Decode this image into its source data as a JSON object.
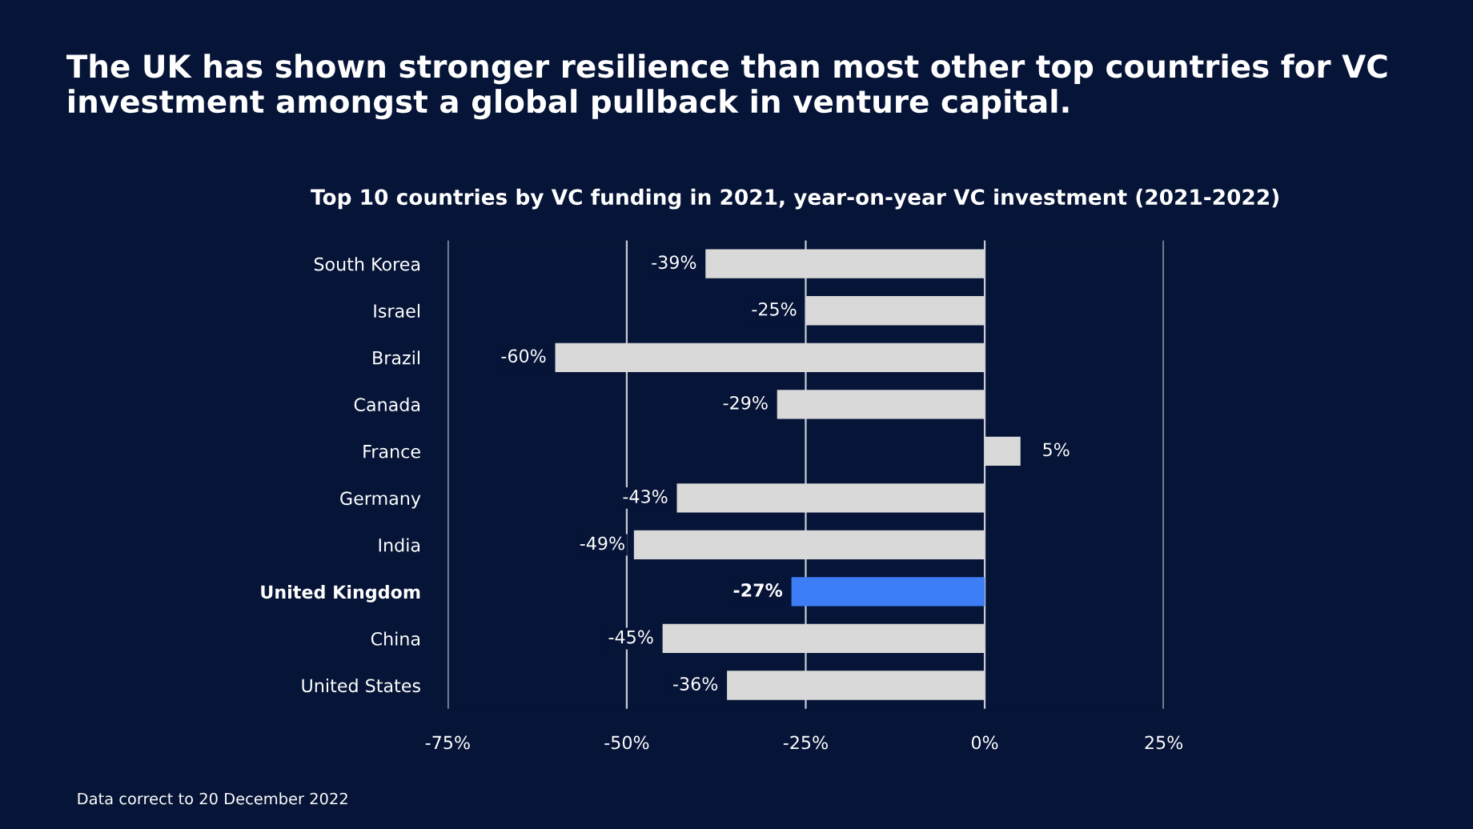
{
  "chart_data": {
    "type": "bar",
    "orientation": "horizontal",
    "title": "The UK has shown stronger resilience than most other top countries for VC investment amongst a global pullback in venture capital.",
    "subtitle": "Top 10 countries by VC funding in 2021, year-on-year VC investment (2021-2022)",
    "categories": [
      "South Korea",
      "Israel",
      "Brazil",
      "Canada",
      "France",
      "Germany",
      "India",
      "United Kingdom",
      "China",
      "United States"
    ],
    "values": [
      -39,
      -25,
      -60,
      -29,
      5,
      -43,
      -49,
      -27,
      -45,
      -36
    ],
    "colors": [
      "#d9d9d9",
      "#d9d9d9",
      "#d9d9d9",
      "#d9d9d9",
      "#d9d9d9",
      "#d9d9d9",
      "#d9d9d9",
      "#3d7ef6",
      "#d9d9d9",
      "#d9d9d9"
    ],
    "value_labels": [
      "-39%",
      "-25%",
      "-60%",
      "-29%",
      "5%",
      "-43%",
      "-49%",
      "-27%",
      "-45%",
      "-36%"
    ],
    "xlim": [
      -75,
      25
    ],
    "xticks": [
      {
        "value": -75,
        "label": "-75%"
      },
      {
        "value": -50,
        "label": "-50%"
      },
      {
        "value": -25,
        "label": "-25%"
      },
      {
        "value": 0,
        "label": "0%"
      },
      {
        "value": 25,
        "label": "25%"
      }
    ],
    "grid": "x",
    "annotations": [
      "Data correct to 20 December 2022"
    ]
  }
}
